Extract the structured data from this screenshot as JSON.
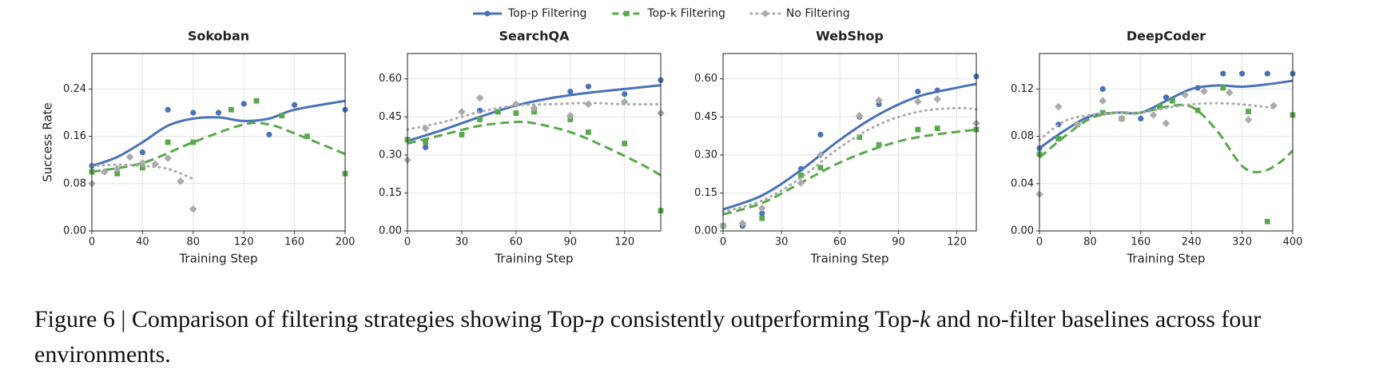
{
  "chart_data": [
    {
      "type": "scatter",
      "title": "Sokoban",
      "xlabel": "Training Step",
      "ylabel": "Success Rate",
      "xlim": [
        0,
        200
      ],
      "ylim": [
        0,
        0.3
      ],
      "xticks": [
        0,
        40,
        80,
        120,
        160,
        200
      ],
      "yticks": [
        {
          "value": 0,
          "label": "0.00"
        },
        0.08,
        0.16,
        0.24
      ],
      "grid": true,
      "legend": "top",
      "series": [
        {
          "name": "Top-p Filtering",
          "color": "#4a72b8",
          "marker": "circle",
          "linestyle": "solid",
          "x": [
            0,
            10,
            40,
            60,
            80,
            100,
            120,
            140,
            160,
            200
          ],
          "values": [
            0.11,
            0.1,
            0.133,
            0.205,
            0.2,
            0.2,
            0.215,
            0.163,
            0.213,
            0.205
          ],
          "fit_x": [
            0,
            20,
            40,
            60,
            80,
            100,
            120,
            140,
            160,
            200
          ],
          "fit_values": [
            0.11,
            0.125,
            0.15,
            0.178,
            0.19,
            0.192,
            0.186,
            0.19,
            0.205,
            0.22
          ]
        },
        {
          "name": "Top-k Filtering",
          "color": "#59a84b",
          "marker": "square",
          "linestyle": "dashed",
          "x": [
            0,
            20,
            40,
            60,
            80,
            110,
            130,
            150,
            170,
            200
          ],
          "values": [
            0.1,
            0.097,
            0.107,
            0.15,
            0.15,
            0.205,
            0.22,
            0.195,
            0.16,
            0.097
          ],
          "fit_x": [
            0,
            40,
            80,
            120,
            140,
            160,
            200
          ],
          "fit_values": [
            0.1,
            0.115,
            0.15,
            0.18,
            0.18,
            0.165,
            0.13
          ]
        },
        {
          "name": "No Filtering",
          "color": "#aaaaaa",
          "marker": "diamond",
          "linestyle": "dotted",
          "x": [
            0,
            10,
            20,
            30,
            40,
            50,
            60,
            70,
            80
          ],
          "values": [
            0.08,
            0.1,
            0.105,
            0.125,
            0.115,
            0.113,
            0.123,
            0.084,
            0.037
          ],
          "fit_x": [
            0,
            20,
            40,
            60,
            80
          ],
          "fit_values": [
            0.11,
            0.112,
            0.11,
            0.105,
            0.088
          ]
        }
      ]
    },
    {
      "type": "scatter",
      "title": "SearchQA",
      "xlabel": "Training Step",
      "xlim": [
        0,
        140
      ],
      "ylim": [
        0,
        0.7
      ],
      "xticks": [
        0,
        30,
        60,
        90,
        120
      ],
      "yticks": [
        {
          "value": 0,
          "label": "0.00"
        },
        0.15,
        {
          "value": 0.3,
          "label": "0.30"
        },
        0.45,
        {
          "value": 0.6,
          "label": "0.60"
        }
      ],
      "grid": true,
      "series": [
        {
          "color": "#4a72b8",
          "marker": "circle",
          "linestyle": "solid",
          "x": [
            0,
            10,
            40,
            60,
            90,
            100,
            120,
            140
          ],
          "values": [
            0.36,
            0.33,
            0.475,
            0.5,
            0.55,
            0.57,
            0.54,
            0.595
          ],
          "fit_x": [
            0,
            20,
            40,
            60,
            80,
            100,
            120,
            140
          ],
          "fit_values": [
            0.355,
            0.4,
            0.45,
            0.495,
            0.525,
            0.545,
            0.56,
            0.575
          ]
        },
        {
          "color": "#59a84b",
          "marker": "square",
          "linestyle": "dashed",
          "x": [
            0,
            10,
            30,
            40,
            50,
            60,
            70,
            90,
            100,
            120,
            140
          ],
          "values": [
            0.36,
            0.35,
            0.38,
            0.44,
            0.47,
            0.465,
            0.47,
            0.44,
            0.39,
            0.345,
            0.08
          ],
          "fit_x": [
            0,
            20,
            40,
            60,
            70,
            90,
            110,
            130,
            140
          ],
          "fit_values": [
            0.345,
            0.38,
            0.415,
            0.43,
            0.425,
            0.39,
            0.33,
            0.26,
            0.22
          ]
        },
        {
          "color": "#aaaaaa",
          "marker": "diamond",
          "linestyle": "dotted",
          "x": [
            0,
            10,
            30,
            40,
            60,
            70,
            90,
            100,
            120,
            140
          ],
          "values": [
            0.28,
            0.405,
            0.47,
            0.525,
            0.5,
            0.485,
            0.455,
            0.5,
            0.51,
            0.465
          ],
          "fit_x": [
            0,
            20,
            40,
            60,
            80,
            100,
            120,
            140
          ],
          "fit_values": [
            0.4,
            0.43,
            0.47,
            0.495,
            0.5,
            0.505,
            0.5,
            0.5
          ]
        }
      ]
    },
    {
      "type": "scatter",
      "title": "WebShop",
      "xlabel": "Training Step",
      "xlim": [
        0,
        130
      ],
      "ylim": [
        0,
        0.7
      ],
      "xticks": [
        0,
        30,
        60,
        90,
        120
      ],
      "yticks": [
        {
          "value": 0,
          "label": "0.00"
        },
        0.15,
        {
          "value": 0.3,
          "label": "0.30"
        },
        0.45,
        {
          "value": 0.6,
          "label": "0.60"
        }
      ],
      "grid": true,
      "series": [
        {
          "color": "#4a72b8",
          "marker": "circle",
          "linestyle": "solid",
          "x": [
            0,
            10,
            20,
            40,
            50,
            70,
            80,
            100,
            110,
            130
          ],
          "values": [
            0.02,
            0.02,
            0.07,
            0.245,
            0.38,
            0.45,
            0.5,
            0.55,
            0.555,
            0.61
          ],
          "fit_x": [
            0,
            20,
            40,
            60,
            80,
            100,
            120,
            130
          ],
          "fit_values": [
            0.085,
            0.14,
            0.24,
            0.36,
            0.46,
            0.53,
            0.565,
            0.58
          ]
        },
        {
          "color": "#59a84b",
          "marker": "square",
          "linestyle": "dashed",
          "x": [
            0,
            20,
            40,
            50,
            70,
            80,
            100,
            110,
            130
          ],
          "values": [
            0.02,
            0.05,
            0.22,
            0.25,
            0.37,
            0.34,
            0.4,
            0.405,
            0.4
          ],
          "fit_x": [
            0,
            20,
            40,
            60,
            80,
            100,
            130
          ],
          "fit_values": [
            0.065,
            0.11,
            0.19,
            0.27,
            0.33,
            0.37,
            0.4
          ]
        },
        {
          "color": "#aaaaaa",
          "marker": "diamond",
          "linestyle": "dotted",
          "x": [
            0,
            10,
            20,
            40,
            50,
            70,
            80,
            100,
            110,
            130
          ],
          "values": [
            0.02,
            0.03,
            0.09,
            0.19,
            0.3,
            0.455,
            0.515,
            0.51,
            0.52,
            0.425
          ],
          "fit_x": [
            0,
            20,
            40,
            60,
            80,
            100,
            120,
            130
          ],
          "fit_values": [
            0.075,
            0.12,
            0.21,
            0.33,
            0.42,
            0.47,
            0.485,
            0.48
          ]
        }
      ]
    },
    {
      "type": "scatter",
      "title": "DeepCoder",
      "xlabel": "Training Step",
      "xlim": [
        0,
        400
      ],
      "ylim": [
        0,
        0.15
      ],
      "xticks": [
        0,
        80,
        160,
        240,
        320,
        400
      ],
      "yticks": [
        {
          "value": 0,
          "label": "0.00"
        },
        0.04,
        0.08,
        0.12
      ],
      "grid": true,
      "series": [
        {
          "color": "#4a72b8",
          "marker": "circle",
          "linestyle": "solid",
          "x": [
            0,
            30,
            100,
            160,
            200,
            250,
            290,
            320,
            360,
            400
          ],
          "values": [
            0.07,
            0.09,
            0.12,
            0.095,
            0.113,
            0.121,
            0.133,
            0.133,
            0.133,
            0.133
          ],
          "fit_x": [
            0,
            40,
            80,
            120,
            160,
            200,
            240,
            280,
            320,
            360,
            400
          ],
          "fit_values": [
            0.07,
            0.085,
            0.097,
            0.1,
            0.1,
            0.11,
            0.12,
            0.123,
            0.122,
            0.124,
            0.127
          ]
        },
        {
          "color": "#59a84b",
          "marker": "square",
          "linestyle": "dashed",
          "x": [
            0,
            30,
            60,
            100,
            130,
            190,
            210,
            250,
            290,
            330,
            360,
            400
          ],
          "values": [
            0.065,
            0.078,
            0.09,
            0.1,
            0.095,
            0.105,
            0.11,
            0.102,
            0.121,
            0.101,
            0.008,
            0.098
          ],
          "fit_x": [
            0,
            40,
            80,
            120,
            160,
            200,
            240,
            280,
            320,
            350,
            380,
            400
          ],
          "fit_values": [
            0.062,
            0.08,
            0.095,
            0.1,
            0.1,
            0.105,
            0.105,
            0.085,
            0.055,
            0.05,
            0.058,
            0.068
          ]
        },
        {
          "color": "#aaaaaa",
          "marker": "diamond",
          "linestyle": "dotted",
          "x": [
            0,
            30,
            60,
            100,
            130,
            180,
            200,
            230,
            260,
            300,
            330,
            370
          ],
          "values": [
            0.031,
            0.105,
            0.09,
            0.11,
            0.095,
            0.098,
            0.091,
            0.115,
            0.118,
            0.117,
            0.094,
            0.106
          ],
          "fit_x": [
            0,
            40,
            80,
            120,
            160,
            200,
            240,
            280,
            320,
            370
          ],
          "fit_values": [
            0.077,
            0.093,
            0.098,
            0.1,
            0.1,
            0.104,
            0.107,
            0.108,
            0.107,
            0.104
          ]
        }
      ]
    }
  ],
  "caption": [
    "Figure 6 | Comparison of filtering strategies showing Top-",
    "p",
    " consistently outperforming Top-",
    "k",
    " and no-filter baselines across four environments."
  ]
}
